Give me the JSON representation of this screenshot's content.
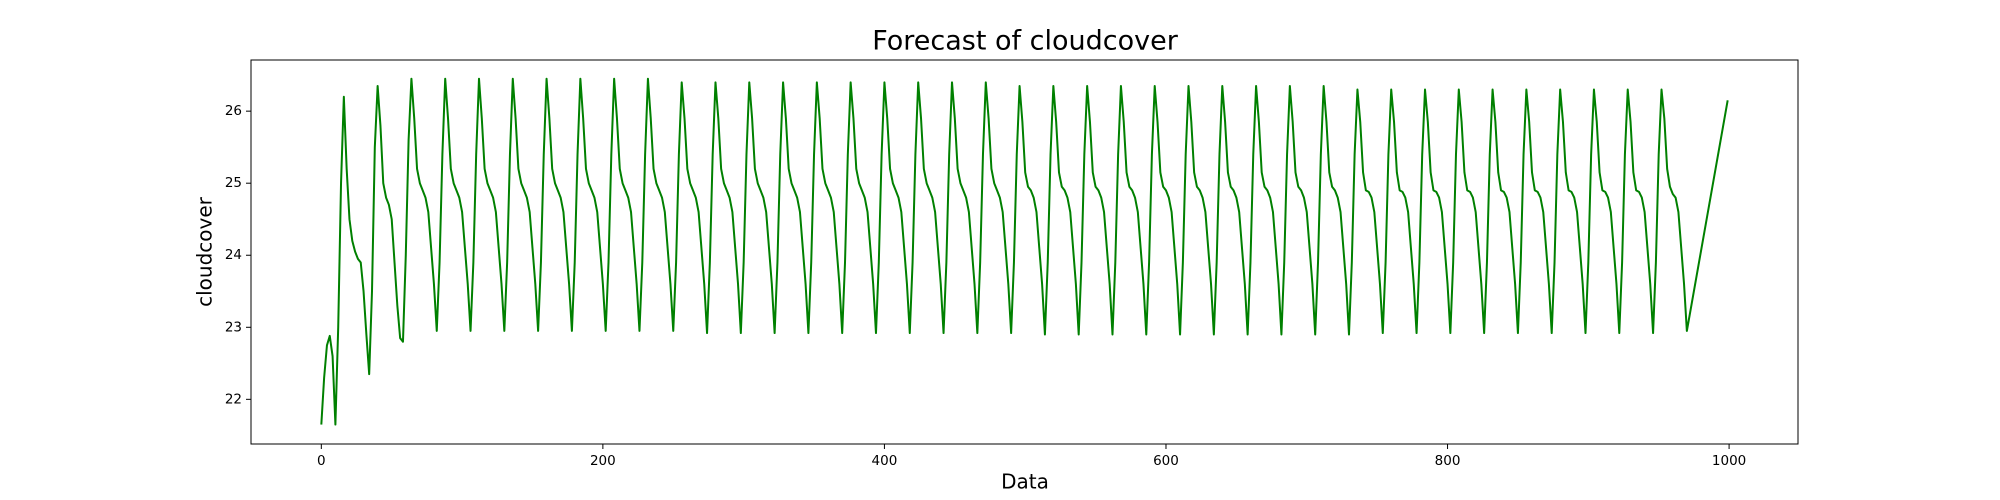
{
  "chart_data": {
    "type": "line",
    "title": "Forecast of cloudcover",
    "x_label": "Data",
    "y_label": "cloudcover",
    "xlim": [
      -49.95,
      1048.95
    ],
    "ylim": [
      21.38,
      26.71
    ],
    "xticks": [
      0,
      200,
      400,
      600,
      800,
      1000
    ],
    "yticks": [
      22,
      23,
      24,
      25,
      26
    ],
    "x": [
      0,
      2,
      4,
      6,
      8,
      10,
      12,
      14,
      16,
      18,
      20,
      22,
      24,
      26,
      28,
      30,
      32,
      34,
      36,
      38,
      40,
      42,
      44,
      46,
      48,
      50,
      52,
      54,
      56,
      58,
      60,
      62,
      64,
      66,
      68,
      70,
      72,
      74,
      76,
      78,
      80,
      82,
      84,
      86,
      88,
      90,
      92,
      94,
      96,
      98,
      100,
      102,
      104,
      106,
      108,
      110,
      112,
      114,
      116,
      118,
      120,
      122,
      124,
      126,
      128,
      130,
      132,
      134,
      136,
      138,
      140,
      142,
      144,
      146,
      148,
      150,
      152,
      154,
      156,
      158,
      160,
      162,
      164,
      166,
      168,
      170,
      172,
      174,
      176,
      178,
      180,
      182,
      184,
      186,
      188,
      190,
      192,
      194,
      196,
      198,
      200,
      202,
      204,
      206,
      208,
      210,
      212,
      214,
      216,
      218,
      220,
      222,
      224,
      226,
      228,
      230,
      232,
      234,
      236,
      238,
      240,
      242,
      244,
      246,
      248,
      250,
      252,
      254,
      256,
      258,
      260,
      262,
      264,
      266,
      268,
      270,
      272,
      274,
      276,
      278,
      280,
      282,
      284,
      286,
      288,
      290,
      292,
      294,
      296,
      298,
      300,
      302,
      304,
      306,
      308,
      310,
      312,
      314,
      316,
      318,
      320,
      322,
      324,
      326,
      328,
      330,
      332,
      334,
      336,
      338,
      340,
      342,
      344,
      346,
      348,
      350,
      352,
      354,
      356,
      358,
      360,
      362,
      364,
      366,
      368,
      370,
      372,
      374,
      376,
      378,
      380,
      382,
      384,
      386,
      388,
      390,
      392,
      394,
      396,
      398,
      400,
      402,
      404,
      406,
      408,
      410,
      412,
      414,
      416,
      418,
      420,
      422,
      424,
      426,
      428,
      430,
      432,
      434,
      436,
      438,
      440,
      442,
      444,
      446,
      448,
      450,
      452,
      454,
      456,
      458,
      460,
      462,
      464,
      466,
      468,
      470,
      472,
      474,
      476,
      478,
      480,
      482,
      484,
      486,
      488,
      490,
      492,
      494,
      496,
      498,
      500,
      502,
      504,
      506,
      508,
      510,
      512,
      514,
      516,
      518,
      520,
      522,
      524,
      526,
      528,
      530,
      532,
      534,
      536,
      538,
      540,
      542,
      544,
      546,
      548,
      550,
      552,
      554,
      556,
      558,
      560,
      562,
      564,
      566,
      568,
      570,
      572,
      574,
      576,
      578,
      580,
      582,
      584,
      586,
      588,
      590,
      592,
      594,
      596,
      598,
      600,
      602,
      604,
      606,
      608,
      610,
      612,
      614,
      616,
      618,
      620,
      622,
      624,
      626,
      628,
      630,
      632,
      634,
      636,
      638,
      640,
      642,
      644,
      646,
      648,
      650,
      652,
      654,
      656,
      658,
      660,
      662,
      664,
      666,
      668,
      670,
      672,
      674,
      676,
      678,
      680,
      682,
      684,
      686,
      688,
      690,
      692,
      694,
      696,
      698,
      700,
      702,
      704,
      706,
      708,
      710,
      712,
      714,
      716,
      718,
      720,
      722,
      724,
      726,
      728,
      730,
      732,
      734,
      736,
      738,
      740,
      742,
      744,
      746,
      748,
      750,
      752,
      754,
      756,
      758,
      760,
      762,
      764,
      766,
      768,
      770,
      772,
      774,
      776,
      778,
      780,
      782,
      784,
      786,
      788,
      790,
      792,
      794,
      796,
      798,
      800,
      802,
      804,
      806,
      808,
      810,
      812,
      814,
      816,
      818,
      820,
      822,
      824,
      826,
      828,
      830,
      832,
      834,
      836,
      838,
      840,
      842,
      844,
      846,
      848,
      850,
      852,
      854,
      856,
      858,
      860,
      862,
      864,
      866,
      868,
      870,
      872,
      874,
      876,
      878,
      880,
      882,
      884,
      886,
      888,
      890,
      892,
      894,
      896,
      898,
      900,
      902,
      904,
      906,
      908,
      910,
      912,
      914,
      916,
      918,
      920,
      922,
      924,
      926,
      928,
      930,
      932,
      934,
      936,
      938,
      940,
      942,
      944,
      946,
      948,
      950,
      952,
      954,
      956,
      958,
      960,
      962,
      964,
      966,
      968,
      970,
      999
    ],
    "series": [
      {
        "color": "#008000",
        "values": [
          21.65,
          22.3,
          22.75,
          22.88,
          22.6,
          21.65,
          23.0,
          25.0,
          26.2,
          25.2,
          24.5,
          24.2,
          24.05,
          23.95,
          23.9,
          23.5,
          22.9,
          22.35,
          23.5,
          25.5,
          26.35,
          25.8,
          25.0,
          24.8,
          24.7,
          24.5,
          23.9,
          23.3,
          22.85,
          22.8,
          24.0,
          25.6,
          26.45,
          25.9,
          25.2,
          25.0,
          24.9,
          24.8,
          24.6,
          24.1,
          23.6,
          22.95,
          23.9,
          25.4,
          26.45,
          25.9,
          25.2,
          25.0,
          24.9,
          24.8,
          24.6,
          24.1,
          23.6,
          22.95,
          23.9,
          25.4,
          26.45,
          25.9,
          25.2,
          25.0,
          24.9,
          24.8,
          24.6,
          24.1,
          23.6,
          22.95,
          23.9,
          25.4,
          26.45,
          25.9,
          25.2,
          25.0,
          24.9,
          24.8,
          24.6,
          24.1,
          23.6,
          22.95,
          23.9,
          25.4,
          26.45,
          25.9,
          25.2,
          25.0,
          24.9,
          24.8,
          24.6,
          24.1,
          23.6,
          22.95,
          23.9,
          25.4,
          26.45,
          25.9,
          25.2,
          25.0,
          24.9,
          24.8,
          24.6,
          24.1,
          23.6,
          22.95,
          23.9,
          25.4,
          26.45,
          25.9,
          25.2,
          25.0,
          24.9,
          24.8,
          24.6,
          24.1,
          23.6,
          22.95,
          23.9,
          25.4,
          26.45,
          25.9,
          25.2,
          25.0,
          24.9,
          24.8,
          24.6,
          24.1,
          23.6,
          22.95,
          23.9,
          25.4,
          26.4,
          25.9,
          25.2,
          25.0,
          24.9,
          24.8,
          24.6,
          24.1,
          23.6,
          22.92,
          23.9,
          25.4,
          26.4,
          25.9,
          25.2,
          25.0,
          24.9,
          24.8,
          24.6,
          24.1,
          23.6,
          22.92,
          23.9,
          25.4,
          26.4,
          25.9,
          25.2,
          25.0,
          24.9,
          24.8,
          24.6,
          24.1,
          23.6,
          22.92,
          23.9,
          25.4,
          26.4,
          25.9,
          25.2,
          25.0,
          24.9,
          24.8,
          24.6,
          24.1,
          23.6,
          22.92,
          23.9,
          25.4,
          26.4,
          25.9,
          25.2,
          25.0,
          24.9,
          24.8,
          24.6,
          24.1,
          23.6,
          22.92,
          23.9,
          25.4,
          26.4,
          25.9,
          25.2,
          25.0,
          24.9,
          24.8,
          24.6,
          24.1,
          23.6,
          22.92,
          23.9,
          25.4,
          26.4,
          25.9,
          25.2,
          25.0,
          24.9,
          24.8,
          24.6,
          24.1,
          23.6,
          22.92,
          23.9,
          25.4,
          26.4,
          25.9,
          25.2,
          25.0,
          24.9,
          24.8,
          24.6,
          24.1,
          23.6,
          22.92,
          23.9,
          25.4,
          26.4,
          25.9,
          25.2,
          25.0,
          24.9,
          24.8,
          24.6,
          24.1,
          23.6,
          22.92,
          23.9,
          25.4,
          26.4,
          25.9,
          25.2,
          25.0,
          24.9,
          24.8,
          24.6,
          24.1,
          23.6,
          22.92,
          23.9,
          25.4,
          26.35,
          25.85,
          25.15,
          24.95,
          24.9,
          24.8,
          24.6,
          24.1,
          23.6,
          22.9,
          23.9,
          25.4,
          26.35,
          25.85,
          25.15,
          24.95,
          24.9,
          24.8,
          24.6,
          24.1,
          23.6,
          22.9,
          23.9,
          25.4,
          26.35,
          25.85,
          25.15,
          24.95,
          24.9,
          24.8,
          24.6,
          24.1,
          23.6,
          22.9,
          23.9,
          25.4,
          26.35,
          25.85,
          25.15,
          24.95,
          24.9,
          24.8,
          24.6,
          24.1,
          23.6,
          22.9,
          23.9,
          25.4,
          26.35,
          25.85,
          25.15,
          24.95,
          24.9,
          24.8,
          24.6,
          24.1,
          23.6,
          22.9,
          23.9,
          25.4,
          26.35,
          25.85,
          25.15,
          24.95,
          24.9,
          24.8,
          24.6,
          24.1,
          23.6,
          22.9,
          23.9,
          25.4,
          26.35,
          25.85,
          25.15,
          24.95,
          24.9,
          24.8,
          24.6,
          24.1,
          23.6,
          22.9,
          23.9,
          25.4,
          26.35,
          25.85,
          25.15,
          24.95,
          24.9,
          24.8,
          24.6,
          24.1,
          23.6,
          22.9,
          23.9,
          25.4,
          26.35,
          25.85,
          25.15,
          24.95,
          24.9,
          24.8,
          24.6,
          24.1,
          23.6,
          22.9,
          23.9,
          25.4,
          26.35,
          25.85,
          25.15,
          24.95,
          24.9,
          24.8,
          24.6,
          24.1,
          23.6,
          22.9,
          23.9,
          25.4,
          26.3,
          25.85,
          25.15,
          24.9,
          24.88,
          24.8,
          24.6,
          24.1,
          23.6,
          22.92,
          23.9,
          25.4,
          26.3,
          25.85,
          25.15,
          24.9,
          24.88,
          24.8,
          24.6,
          24.1,
          23.6,
          22.92,
          23.9,
          25.4,
          26.3,
          25.85,
          25.15,
          24.9,
          24.88,
          24.8,
          24.6,
          24.1,
          23.6,
          22.92,
          23.9,
          25.4,
          26.3,
          25.85,
          25.15,
          24.9,
          24.88,
          24.8,
          24.6,
          24.1,
          23.6,
          22.92,
          23.9,
          25.4,
          26.3,
          25.85,
          25.15,
          24.9,
          24.88,
          24.8,
          24.6,
          24.1,
          23.6,
          22.92,
          23.9,
          25.4,
          26.3,
          25.85,
          25.15,
          24.9,
          24.88,
          24.8,
          24.6,
          24.1,
          23.6,
          22.92,
          23.9,
          25.4,
          26.3,
          25.85,
          25.15,
          24.9,
          24.88,
          24.8,
          24.6,
          24.1,
          23.6,
          22.92,
          23.9,
          25.4,
          26.3,
          25.85,
          25.15,
          24.9,
          24.88,
          24.8,
          24.6,
          24.1,
          23.6,
          22.92,
          23.9,
          25.4,
          26.3,
          25.85,
          25.15,
          24.9,
          24.88,
          24.8,
          24.6,
          24.1,
          23.6,
          22.92,
          23.9,
          25.4,
          26.3,
          25.9,
          25.2,
          24.95,
          24.85,
          24.8,
          24.6,
          24.1,
          23.6,
          22.95,
          26.15
        ]
      }
    ]
  }
}
